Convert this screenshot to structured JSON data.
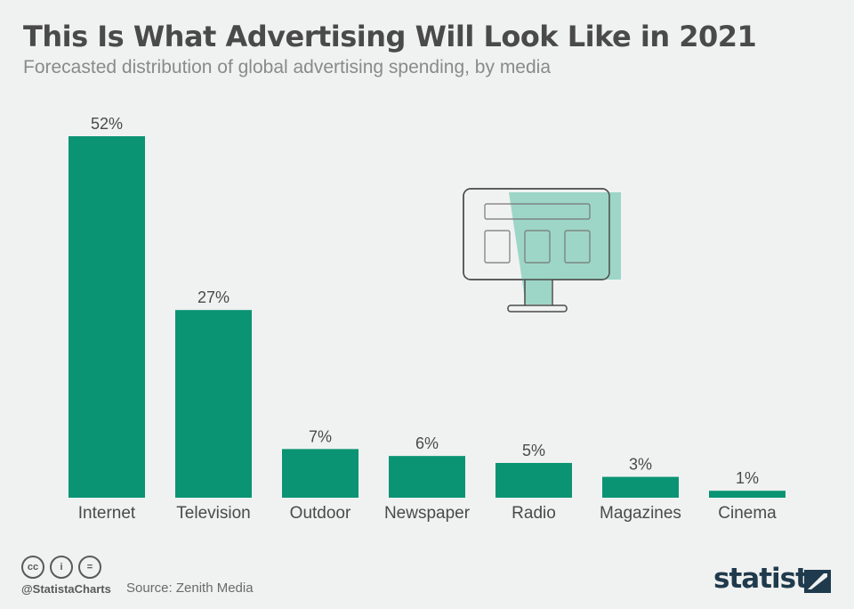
{
  "header": {
    "title": "This Is What Advertising Will Look Like in 2021",
    "subtitle": "Forecasted distribution of global advertising spending, by media"
  },
  "chart_data": {
    "type": "bar",
    "categories": [
      "Internet",
      "Television",
      "Outdoor",
      "Newspaper",
      "Radio",
      "Magazines",
      "Cinema"
    ],
    "values": [
      52,
      27,
      7,
      6,
      5,
      3,
      1
    ],
    "value_labels": [
      "52%",
      "27%",
      "7%",
      "6%",
      "5%",
      "3%",
      "1%"
    ],
    "unit": "%",
    "title": "This Is What Advertising Will Look Like in 2021",
    "subtitle": "Forecasted distribution of global advertising spending, by media",
    "xlabel": "",
    "ylabel": "",
    "ylim": [
      0,
      52
    ],
    "grid": false,
    "legend": "none",
    "colors": {
      "bar": "#0a9474"
    }
  },
  "illustration": {
    "icon": "computer-monitor-icon",
    "accent": "#9dd6c6"
  },
  "footer": {
    "license_icons": [
      "cc-icon",
      "attribution-icon",
      "no-derivatives-icon"
    ],
    "license_glyphs": [
      "cc",
      "i",
      "="
    ],
    "handle": "@StatistaCharts",
    "source": "Source: Zenith Media",
    "brand": "statista"
  },
  "colors": {
    "background": "#f0f1f1",
    "title": "#4a4a4a",
    "bar": "#0a9474",
    "brand": "#1f3a4d"
  }
}
